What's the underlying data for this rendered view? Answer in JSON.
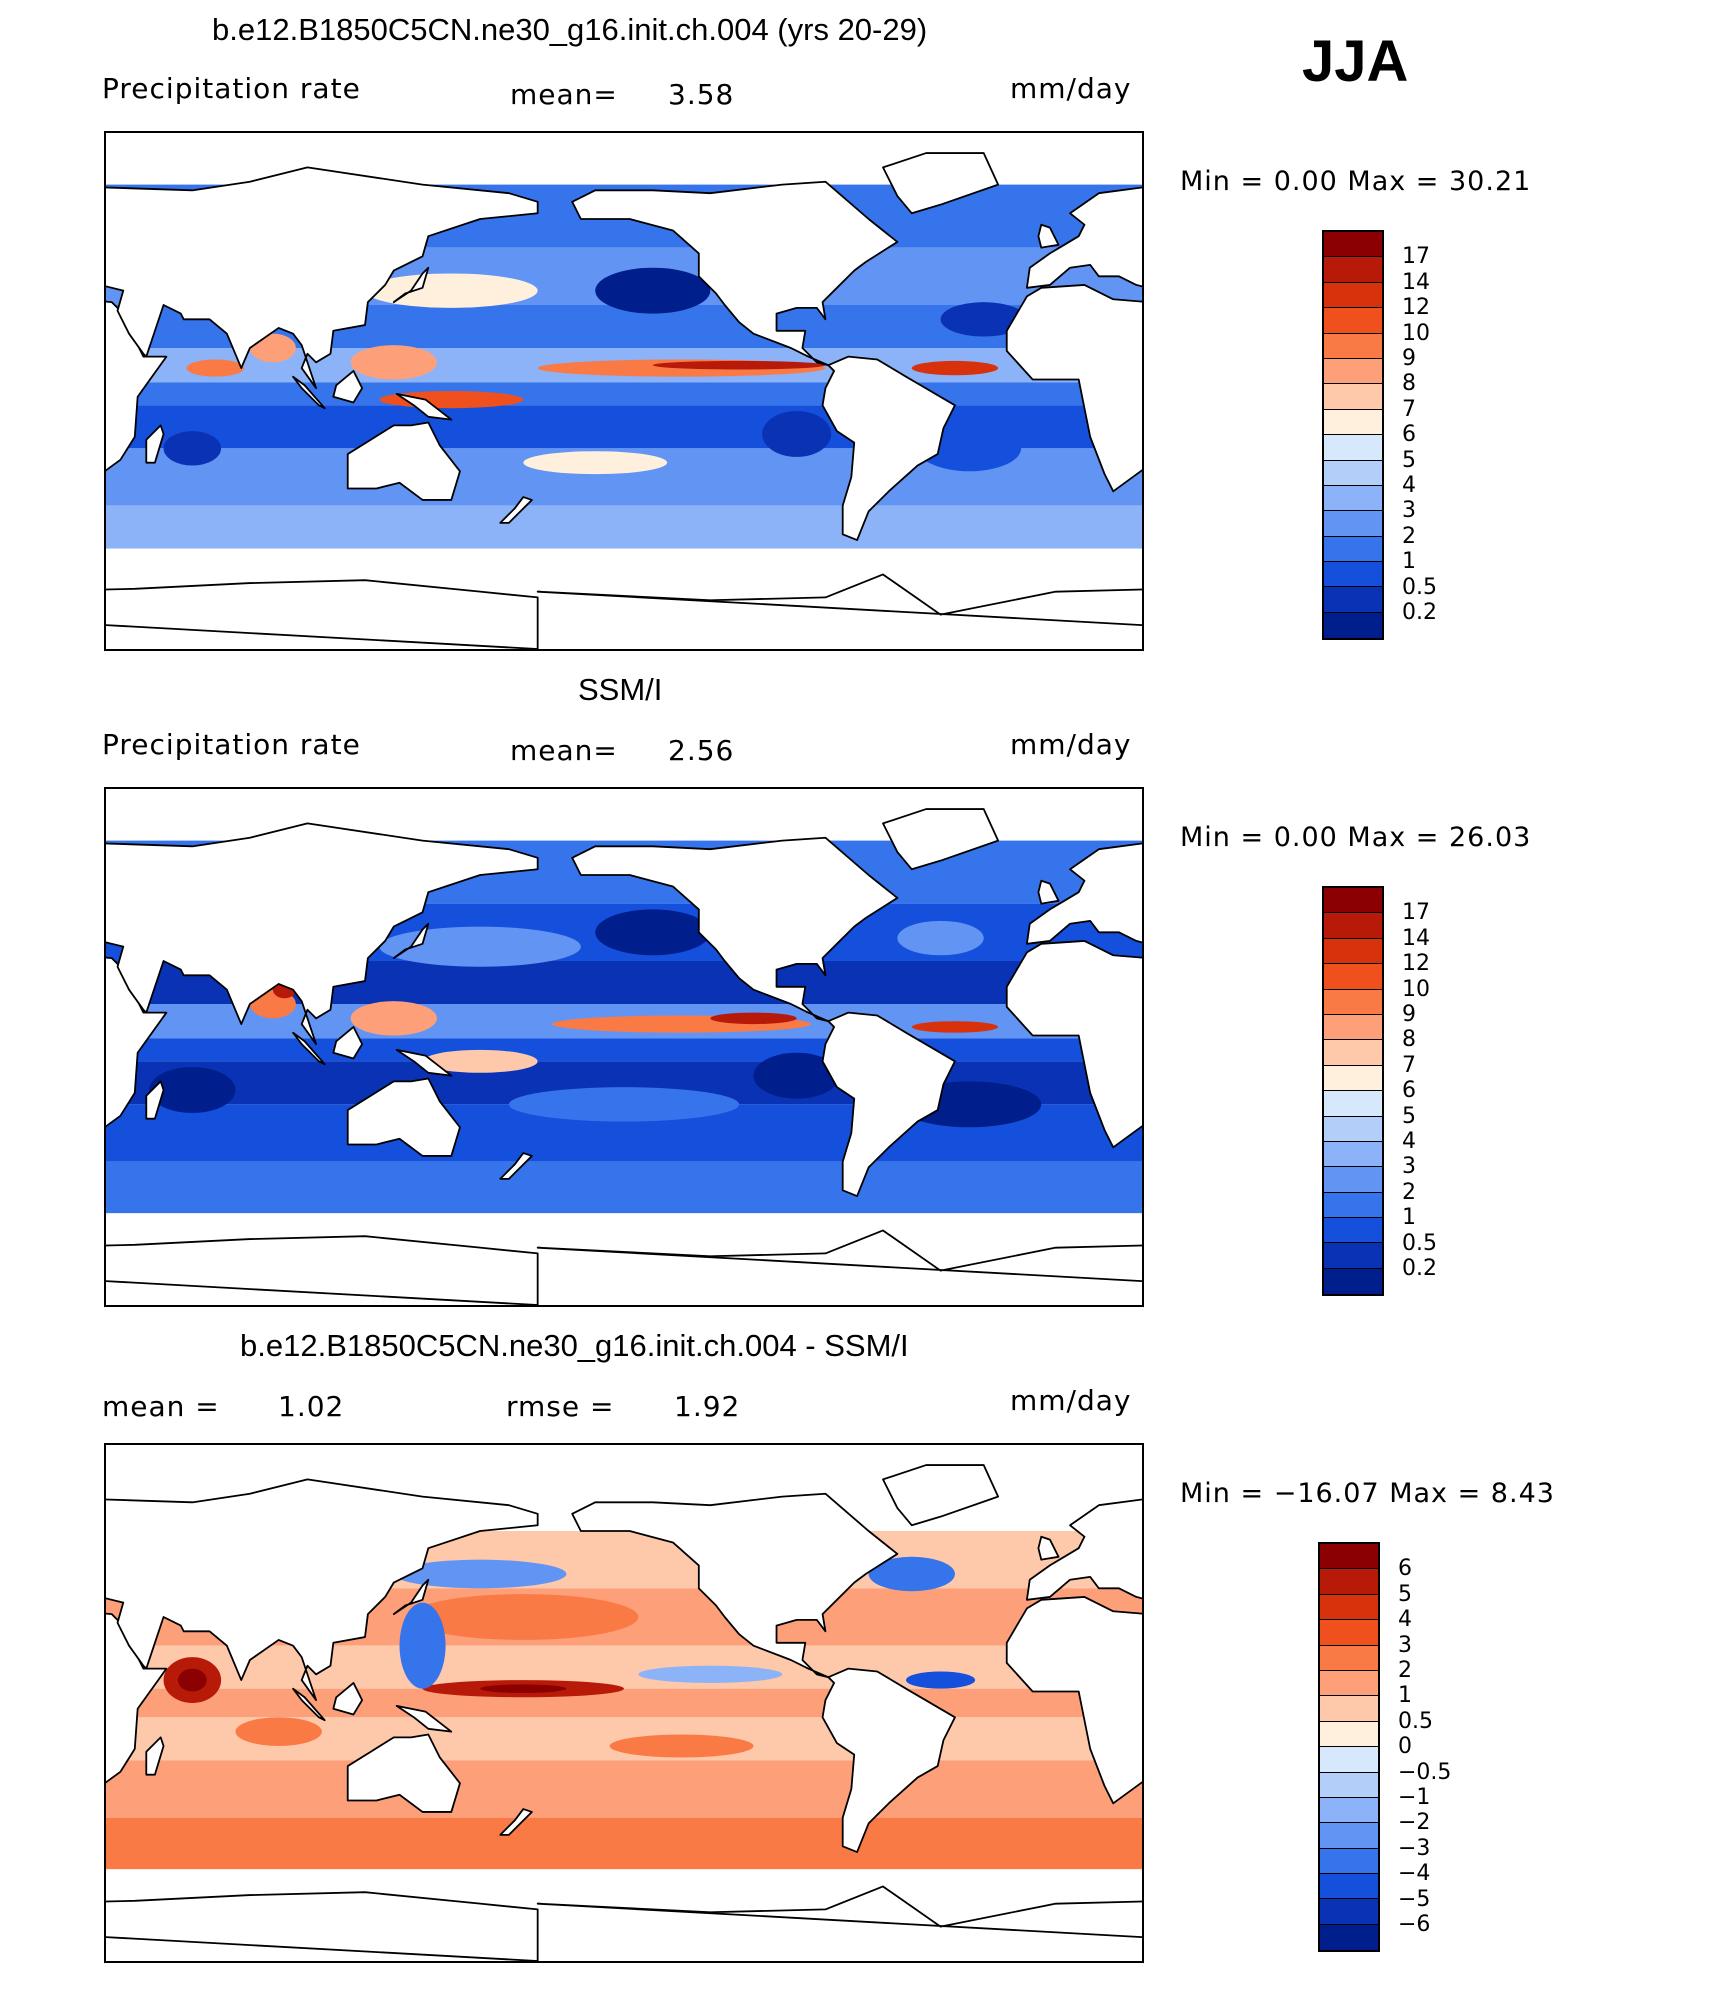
{
  "season": "JJA",
  "panels": [
    {
      "id": "model",
      "title": "b.e12.B1850C5CN.ne30_g16.init.ch.004 (yrs 20-29)",
      "variable": "Precipitation rate",
      "stat1_label": "mean=",
      "stat1_value": "3.58",
      "units": "mm/day",
      "minmax": "Min =     0.00  Max =   30.21"
    },
    {
      "id": "obs",
      "title": "SSM/I",
      "variable": "Precipitation rate",
      "stat1_label": "mean=",
      "stat1_value": "2.56",
      "units": "mm/day",
      "minmax": "Min =     0.00  Max =   26.03"
    },
    {
      "id": "diff",
      "title": "b.e12.B1850C5CN.ne30_g16.init.ch.004 - SSM/I",
      "stat1_label": "mean =",
      "stat1_value": "1.02",
      "stat2_label": "rmse =",
      "stat2_value": "1.92",
      "units": "mm/day",
      "minmax": "Min = −16.07  Max =    8.43"
    }
  ],
  "chart_data": [
    {
      "type": "heatmap",
      "title": "b.e12.B1850C5CN.ne30_g16.init.ch.004 (yrs 20-29)",
      "variable": "Precipitation rate",
      "units": "mm/day",
      "mean": 3.58,
      "min": 0.0,
      "max": 30.21,
      "colorbar": {
        "levels": [
          "17",
          "14",
          "12",
          "10",
          "9",
          "8",
          "7",
          "6",
          "5",
          "4",
          "3",
          "2",
          "1",
          "0.5",
          "0.2"
        ],
        "colors": [
          "#8b0000",
          "#b81a0a",
          "#d8320d",
          "#f0501e",
          "#fa7a46",
          "#fda07a",
          "#fec8aa",
          "#fef0dc",
          "#d8e8fc",
          "#b4cefa",
          "#8cb2f8",
          "#6294f4",
          "#3674ec",
          "#1450dc",
          "#0a32b4",
          "#001e8c"
        ]
      }
    },
    {
      "type": "heatmap",
      "title": "SSM/I",
      "variable": "Precipitation rate",
      "units": "mm/day",
      "mean": 2.56,
      "min": 0.0,
      "max": 26.03,
      "colorbar": {
        "levels": [
          "17",
          "14",
          "12",
          "10",
          "9",
          "8",
          "7",
          "6",
          "5",
          "4",
          "3",
          "2",
          "1",
          "0.5",
          "0.2"
        ],
        "colors": [
          "#8b0000",
          "#b81a0a",
          "#d8320d",
          "#f0501e",
          "#fa7a46",
          "#fda07a",
          "#fec8aa",
          "#fef0dc",
          "#d8e8fc",
          "#b4cefa",
          "#8cb2f8",
          "#6294f4",
          "#3674ec",
          "#1450dc",
          "#0a32b4",
          "#001e8c"
        ]
      }
    },
    {
      "type": "heatmap",
      "title": "b.e12.B1850C5CN.ne30_g16.init.ch.004 - SSM/I",
      "units": "mm/day",
      "mean": 1.02,
      "rmse": 1.92,
      "min": -16.07,
      "max": 8.43,
      "colorbar": {
        "levels": [
          "6",
          "5",
          "4",
          "3",
          "2",
          "1",
          "0.5",
          "0",
          "−0.5",
          "−1",
          "−2",
          "−3",
          "−4",
          "−5",
          "−6"
        ],
        "colors": [
          "#8b0000",
          "#b81a0a",
          "#d8320d",
          "#f0501e",
          "#fa7a46",
          "#fda07a",
          "#fec8aa",
          "#fef0dc",
          "#d8e8fc",
          "#b4cefa",
          "#8cb2f8",
          "#6294f4",
          "#3674ec",
          "#1450dc",
          "#0a32b4",
          "#001e8c"
        ]
      }
    }
  ]
}
